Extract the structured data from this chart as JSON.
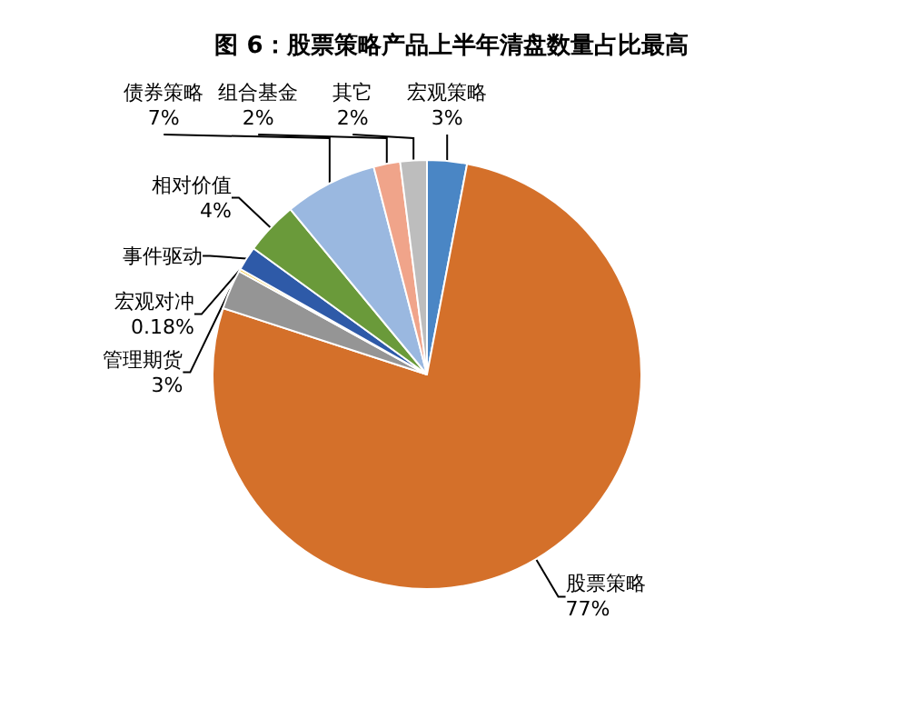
{
  "chart_data": {
    "type": "pie",
    "title": "图 6：股票策略产品上半年清盘数量占比最高",
    "categories": [
      "宏观策略",
      "股票策略",
      "管理期货",
      "宏观对冲",
      "事件驱动",
      "相对价值",
      "债券策略",
      "组合基金",
      "其它"
    ],
    "values": [
      3,
      77,
      3,
      0.18,
      1.82,
      4,
      7,
      2,
      2
    ],
    "value_labels": [
      "3%",
      "77%",
      "3%",
      "0.18%",
      null,
      "4%",
      "7%",
      "2%",
      "2%"
    ],
    "colors": [
      "#4a86c5",
      "#d4702a",
      "#959595",
      "#f0b800",
      "#2e5aa8",
      "#6a9a3a",
      "#9ab8e0",
      "#f0a48a",
      "#bdbdbd"
    ],
    "legend": false
  }
}
